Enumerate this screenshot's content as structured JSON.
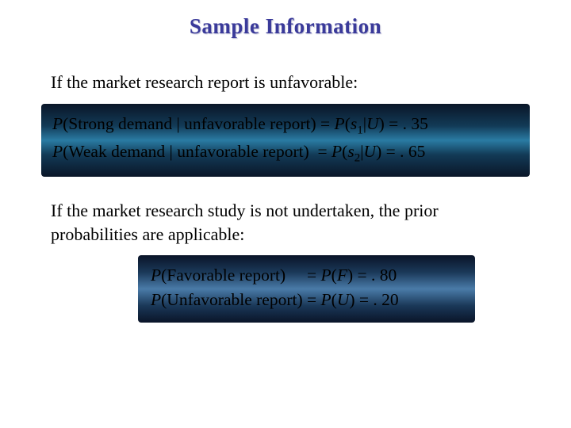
{
  "title": "Sample Information",
  "intro1": "If the market research report is unfavorable:",
  "box1": {
    "line1_prefix": "P",
    "line1_cond": "(Strong demand | unfavorable report) = ",
    "line1_sym": "P",
    "line1_paren_open": "(",
    "line1_s": "s",
    "line1_sub": "1",
    "line1_rest": "|",
    "line1_U": "U",
    "line1_close": ") = . 35",
    "line2_prefix": "P",
    "line2_cond": "(Weak demand | unfavorable report)  = ",
    "line2_sym": "P",
    "line2_paren_open": "(",
    "line2_s": "s",
    "line2_sub": "2",
    "line2_rest": "|",
    "line2_U": "U",
    "line2_close": ") = . 65"
  },
  "intro2a": "If the market research study is not undertaken, the prior",
  "intro2b": "probabilities are applicable:",
  "box2": {
    "l1_P1": "P",
    "l1_txt1": "(Favorable report)     = ",
    "l1_P2": "P",
    "l1_open": "(",
    "l1_F": "F",
    "l1_rest": ") = . 80",
    "l2_P1": "P",
    "l2_txt1": "(Unfavorable report) = ",
    "l2_P2": "P",
    "l2_open": "(",
    "l2_U": "U",
    "l2_rest": ") = . 20"
  },
  "colors": {
    "title_color": "#3a3a9a",
    "text_color": "#000000",
    "box_bg_dark": "#0a1628",
    "box_bg_mid": "#2a7ba3"
  }
}
